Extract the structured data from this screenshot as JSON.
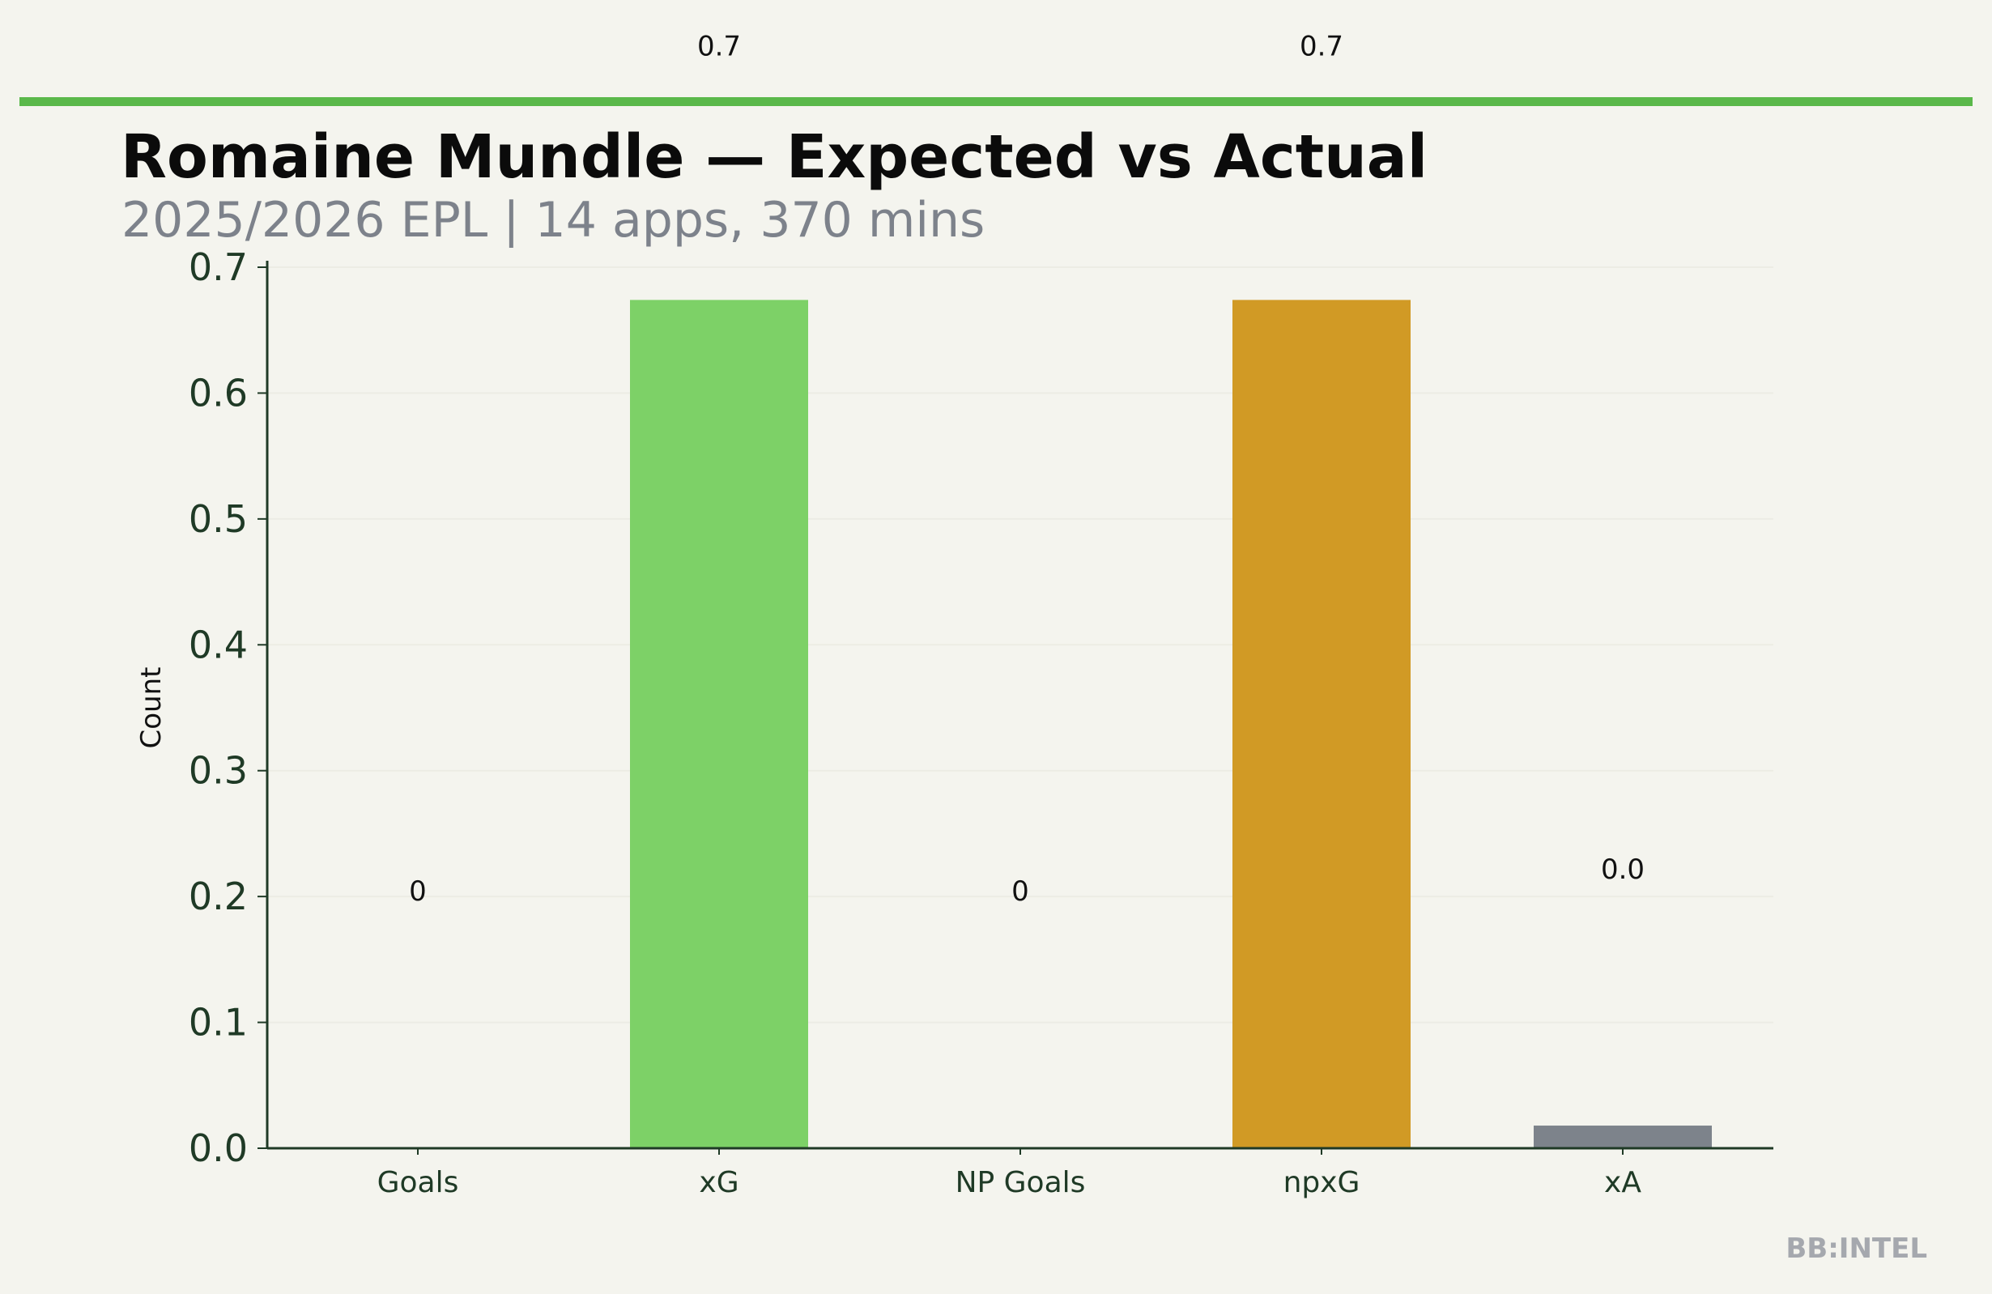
{
  "header": {
    "title": "Romaine Mundle — Expected vs Actual",
    "subtitle": "2025/2026 EPL | 14 apps, 370 mins"
  },
  "branding": {
    "watermark": "BB:INTEL"
  },
  "colors": {
    "background": "#f4f4ee",
    "accent": "#5ab84a",
    "axis": "#1f3a26"
  },
  "chart_data": {
    "type": "bar",
    "categories": [
      "Goals",
      "xG",
      "NP Goals",
      "npxG",
      "xA"
    ],
    "values": [
      0,
      0.674,
      0,
      0.674,
      0.018
    ],
    "value_labels": [
      "0",
      "0.7",
      "0",
      "0.7",
      "0.0"
    ],
    "colors": [
      "#5ab84a",
      "#7dd167",
      "#5ab84a",
      "#d19a25",
      "#7d838b"
    ],
    "ylabel": "Count",
    "ylim": [
      0,
      0.7
    ],
    "yticks": [
      0,
      0.1,
      0.2,
      0.3,
      0.4,
      0.5,
      0.6,
      0.7
    ],
    "ytick_labels": [
      "0.0",
      "0.1",
      "0.2",
      "0.3",
      "0.4",
      "0.5",
      "0.6",
      "0.7"
    ],
    "grid": true,
    "legend": "none"
  }
}
